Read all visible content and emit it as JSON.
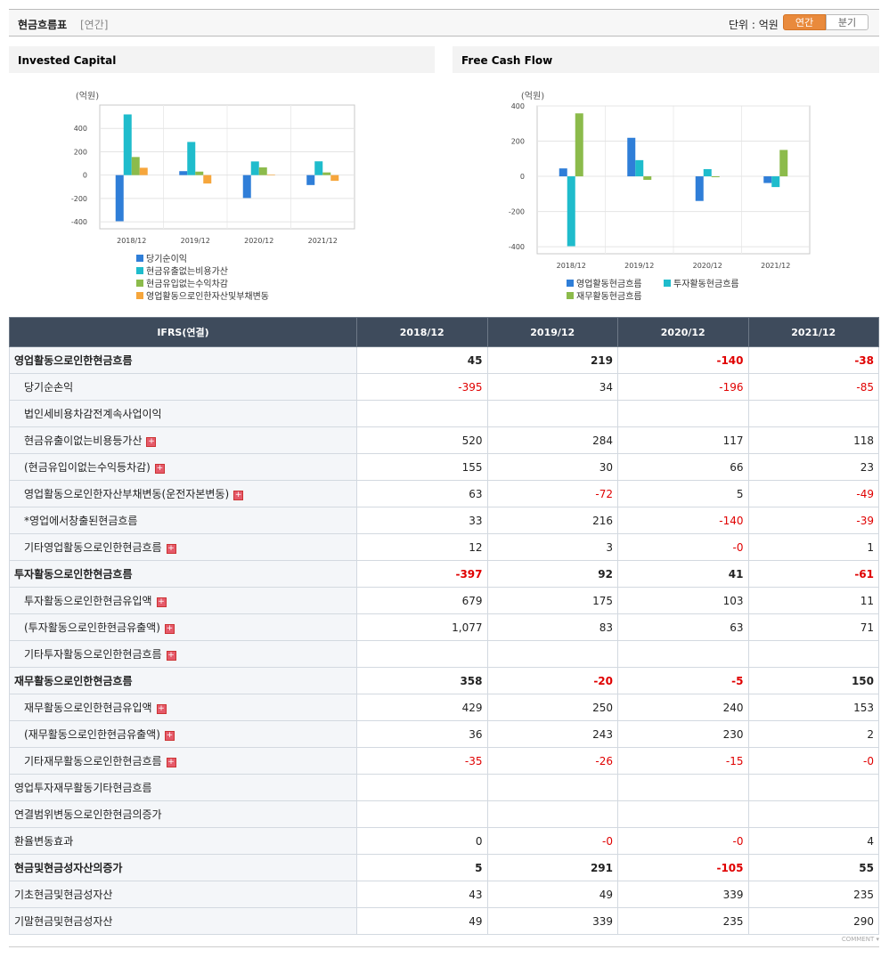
{
  "header": {
    "title": "현금흐름표",
    "period": "[연간]",
    "unit": "단위 : 억원",
    "tabs": [
      "연간",
      "분기"
    ]
  },
  "chart_data": [
    {
      "type": "bar",
      "title": "Invested Capital",
      "y_label": "(억원)",
      "categories": [
        "2018/12",
        "2019/12",
        "2020/12",
        "2021/12"
      ],
      "series": [
        {
          "name": "당기순이익",
          "color": "#2f7ed8",
          "values": [
            -395,
            34,
            -196,
            -85
          ]
        },
        {
          "name": "현금유출없는비용가산",
          "color": "#1fbccc",
          "values": [
            520,
            284,
            117,
            118
          ]
        },
        {
          "name": "현금유입없는수익차감",
          "color": "#8cbb4b",
          "values": [
            155,
            30,
            66,
            23
          ]
        },
        {
          "name": "영업활동으로인한자산및부채변동",
          "color": "#f6a63c",
          "values": [
            63,
            -72,
            5,
            -49
          ]
        }
      ],
      "ylim": [
        -460,
        600
      ],
      "yticks": [
        -400,
        -200,
        0,
        200,
        400
      ],
      "grid": true
    },
    {
      "type": "bar",
      "title": "Free Cash Flow",
      "y_label": "(억원)",
      "categories": [
        "2018/12",
        "2019/12",
        "2020/12",
        "2021/12"
      ],
      "series": [
        {
          "name": "영업활동현금흐름",
          "color": "#2f7ed8",
          "values": [
            45,
            219,
            -140,
            -38
          ]
        },
        {
          "name": "투자활동현금흐름",
          "color": "#1fbccc",
          "values": [
            -397,
            92,
            41,
            -61
          ]
        },
        {
          "name": "재무활동현금흐름",
          "color": "#8cbb4b",
          "values": [
            358,
            -20,
            -5,
            150
          ]
        }
      ],
      "ylim": [
        -440,
        400
      ],
      "yticks": [
        -400,
        -200,
        0,
        200,
        400
      ],
      "grid": true
    }
  ],
  "table": {
    "columns": [
      "IFRS(연결)",
      "2018/12",
      "2019/12",
      "2020/12",
      "2021/12"
    ],
    "rows": [
      {
        "label": "영업활동으로인한현금흐름",
        "top": true,
        "bold": true,
        "values": [
          "45",
          "219",
          "-140",
          "-38"
        ]
      },
      {
        "label": "당기순손익",
        "values": [
          "-395",
          "34",
          "-196",
          "-85"
        ]
      },
      {
        "label": "법인세비용차감전계속사업이익",
        "values": [
          null,
          null,
          null,
          null
        ]
      },
      {
        "label": "현금유출이없는비용등가산",
        "expand": true,
        "values": [
          "520",
          "284",
          "117",
          "118"
        ]
      },
      {
        "label": "(현금유입이없는수익등차감)",
        "expand": true,
        "values": [
          "155",
          "30",
          "66",
          "23"
        ]
      },
      {
        "label": "영업활동으로인한자산부채변동(운전자본변동)",
        "expand": true,
        "values": [
          "63",
          "-72",
          "5",
          "-49"
        ]
      },
      {
        "label": "*영업에서창출된현금흐름",
        "values": [
          "33",
          "216",
          "-140",
          "-39"
        ]
      },
      {
        "label": "기타영업활동으로인한현금흐름",
        "expand": true,
        "values": [
          "12",
          "3",
          "-0",
          "1"
        ]
      },
      {
        "label": "투자활동으로인한현금흐름",
        "top": true,
        "bold": true,
        "values": [
          "-397",
          "92",
          "41",
          "-61"
        ]
      },
      {
        "label": "투자활동으로인한현금유입액",
        "expand": true,
        "values": [
          "679",
          "175",
          "103",
          "11"
        ]
      },
      {
        "label": "(투자활동으로인한현금유출액)",
        "expand": true,
        "values": [
          "1,077",
          "83",
          "63",
          "71"
        ]
      },
      {
        "label": "기타투자활동으로인한현금흐름",
        "expand": true,
        "values": [
          null,
          null,
          null,
          null
        ]
      },
      {
        "label": "재무활동으로인한현금흐름",
        "top": true,
        "bold": true,
        "values": [
          "358",
          "-20",
          "-5",
          "150"
        ]
      },
      {
        "label": "재무활동으로인한현금유입액",
        "expand": true,
        "values": [
          "429",
          "250",
          "240",
          "153"
        ]
      },
      {
        "label": "(재무활동으로인한현금유출액)",
        "expand": true,
        "values": [
          "36",
          "243",
          "230",
          "2"
        ]
      },
      {
        "label": "기타재무활동으로인한현금흐름",
        "expand": true,
        "values": [
          "-35",
          "-26",
          "-15",
          "-0"
        ]
      },
      {
        "label": "영업투자재무활동기타현금흐름",
        "top": true,
        "values": [
          null,
          null,
          null,
          null
        ]
      },
      {
        "label": "연결범위변동으로인한현금의증가",
        "top": true,
        "values": [
          null,
          null,
          null,
          null
        ]
      },
      {
        "label": "환율변동효과",
        "top": true,
        "values": [
          "0",
          "-0",
          "-0",
          "4"
        ]
      },
      {
        "label": "현금및현금성자산의증가",
        "top": true,
        "bold": true,
        "values": [
          "5",
          "291",
          "-105",
          "55"
        ]
      },
      {
        "label": "기초현금및현금성자산",
        "top": true,
        "values": [
          "43",
          "49",
          "339",
          "235"
        ]
      },
      {
        "label": "기말현금및현금성자산",
        "top": true,
        "values": [
          "49",
          "339",
          "235",
          "290"
        ]
      }
    ]
  },
  "footer": {
    "comment": "COMMENT"
  }
}
